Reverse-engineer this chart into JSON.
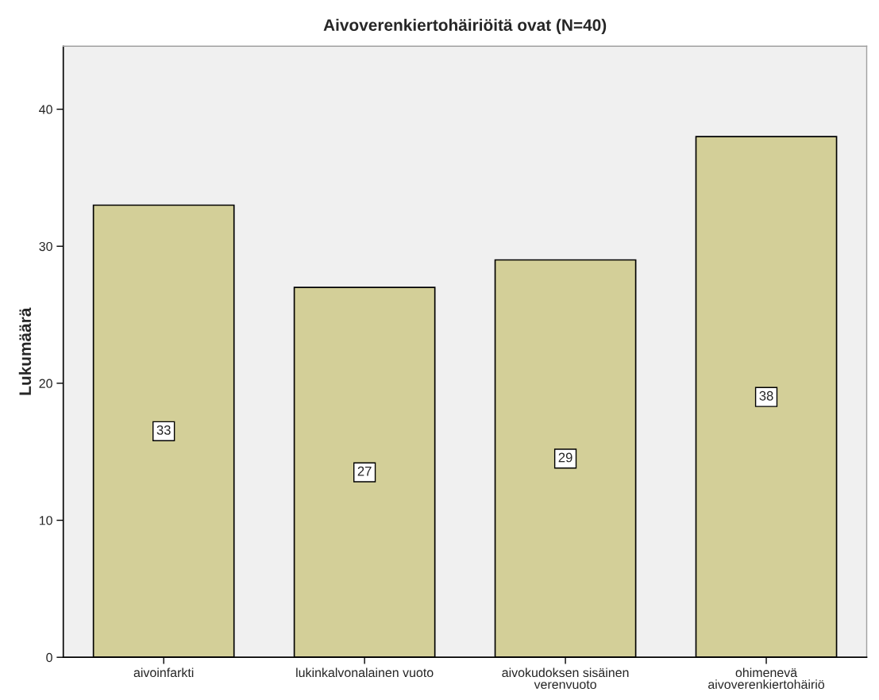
{
  "chart_data": {
    "type": "bar",
    "title": "Aivoverenkiertohäiriöitä ovat (N=40)",
    "ylabel": "Lukumäärä",
    "categories": [
      "aivoinfarkti",
      "lukinkalvonalainen vuoto",
      "aivokudoksen sisäinen\nverenvuoto",
      "ohimenevä\naivoverenkiertohäiriö"
    ],
    "values": [
      33,
      27,
      29,
      38
    ],
    "color": "#d3cf98",
    "ylim": [
      0,
      44.6
    ],
    "yticks": [
      0,
      10,
      20,
      30,
      40
    ],
    "grid": false,
    "data_labels": true
  }
}
